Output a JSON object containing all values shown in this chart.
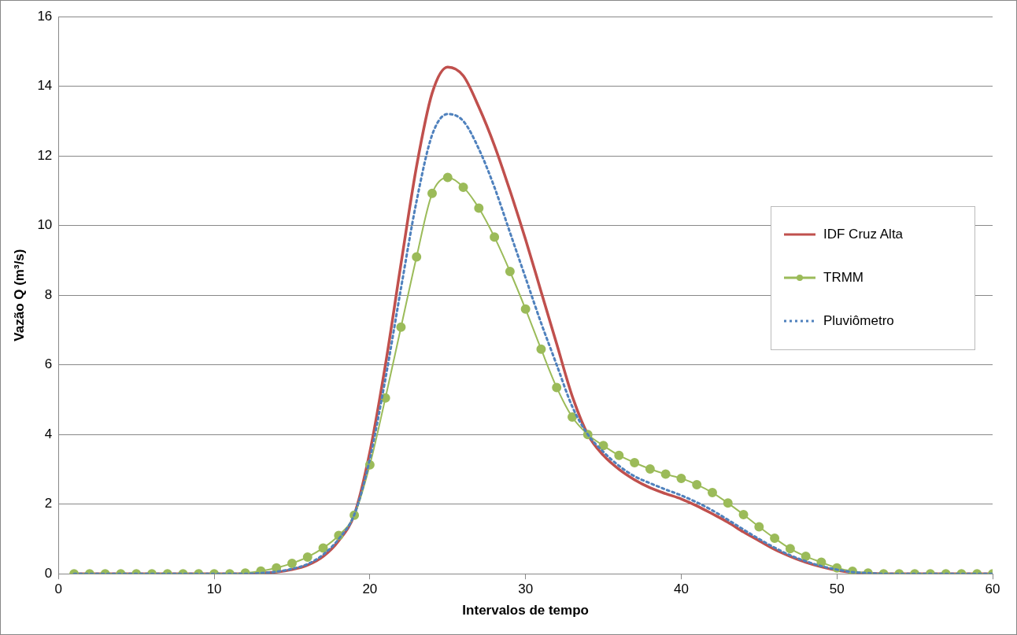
{
  "chart_data": {
    "type": "line",
    "xlabel": "Intervalos de tempo",
    "ylabel": "Vazão Q (m³/s)",
    "x": [
      1,
      2,
      3,
      4,
      5,
      6,
      7,
      8,
      9,
      10,
      11,
      12,
      13,
      14,
      15,
      16,
      17,
      18,
      19,
      20,
      21,
      22,
      23,
      24,
      25,
      26,
      27,
      28,
      29,
      30,
      31,
      32,
      33,
      34,
      35,
      36,
      37,
      38,
      39,
      40,
      41,
      42,
      43,
      44,
      45,
      46,
      47,
      48,
      49,
      50,
      51,
      52,
      53,
      54,
      55,
      56,
      57,
      58,
      59,
      60
    ],
    "xlim": [
      0,
      60
    ],
    "xticks": [
      0,
      10,
      20,
      30,
      40,
      50,
      60
    ],
    "ylim": [
      0,
      16
    ],
    "yticks": [
      0,
      2,
      4,
      6,
      8,
      10,
      12,
      14,
      16
    ],
    "grid": "y",
    "legend": "right",
    "series": [
      {
        "name": "IDF Cruz Alta",
        "color": "#c0504d",
        "marker": "none",
        "line_style": "solid",
        "values": [
          0,
          0,
          0,
          0,
          0,
          0,
          0,
          0,
          0,
          0,
          0,
          0,
          0.02,
          0.05,
          0.12,
          0.25,
          0.5,
          0.95,
          1.7,
          3.5,
          6.0,
          8.9,
          11.7,
          13.8,
          14.55,
          14.3,
          13.4,
          12.3,
          11.0,
          9.6,
          8.1,
          6.6,
          5.1,
          4.0,
          3.4,
          3.0,
          2.7,
          2.47,
          2.3,
          2.15,
          1.95,
          1.72,
          1.48,
          1.2,
          0.95,
          0.7,
          0.5,
          0.33,
          0.2,
          0.1,
          0.04,
          0.01,
          0,
          0,
          0,
          0,
          0,
          0,
          0,
          0
        ]
      },
      {
        "name": "TRMM",
        "color": "#9bbb59",
        "marker": "circle",
        "line_style": "solid",
        "values": [
          0,
          0,
          0,
          0,
          0,
          0,
          0,
          0,
          0,
          0,
          0,
          0.02,
          0.08,
          0.17,
          0.3,
          0.48,
          0.74,
          1.1,
          1.68,
          3.13,
          5.05,
          7.08,
          9.1,
          10.92,
          11.38,
          11.1,
          10.5,
          9.67,
          8.68,
          7.6,
          6.45,
          5.35,
          4.5,
          4.0,
          3.68,
          3.4,
          3.19,
          3.01,
          2.86,
          2.74,
          2.56,
          2.33,
          2.03,
          1.7,
          1.35,
          1.02,
          0.72,
          0.5,
          0.33,
          0.17,
          0.07,
          0.02,
          0,
          0,
          0,
          0,
          0,
          0,
          0,
          0
        ]
      },
      {
        "name": "Pluviômetro",
        "color": "#4f81bd",
        "marker": "none",
        "line_style": "dotted",
        "values": [
          0,
          0,
          0,
          0,
          0,
          0,
          0,
          0,
          0,
          0,
          0,
          0,
          0.02,
          0.06,
          0.14,
          0.28,
          0.55,
          1.0,
          1.7,
          3.3,
          5.6,
          8.2,
          10.7,
          12.6,
          13.2,
          13.0,
          12.2,
          11.1,
          9.8,
          8.5,
          7.2,
          6.0,
          4.8,
          4.0,
          3.5,
          3.1,
          2.8,
          2.6,
          2.42,
          2.25,
          2.05,
          1.82,
          1.55,
          1.27,
          1.0,
          0.75,
          0.53,
          0.36,
          0.22,
          0.12,
          0.05,
          0.02,
          0,
          0,
          0,
          0,
          0,
          0,
          0,
          0
        ]
      }
    ]
  }
}
